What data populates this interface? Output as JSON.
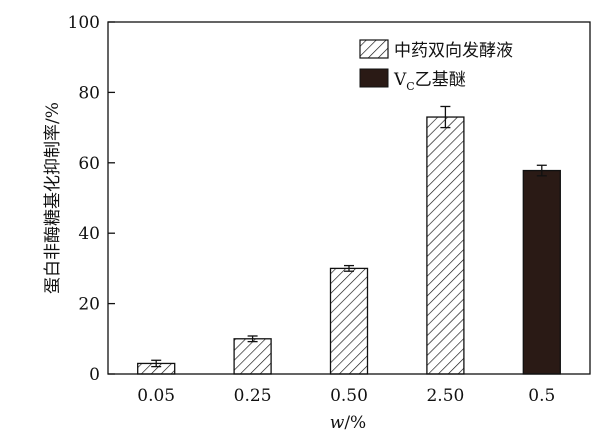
{
  "chart_data": {
    "type": "bar",
    "categories": [
      "0.05",
      "0.25",
      "0.50",
      "2.50",
      "0.5"
    ],
    "series": [
      {
        "name": "中药双向发酵液",
        "values": [
          3.0,
          10.0,
          30.0,
          73.0,
          null
        ],
        "errors": [
          0.9,
          0.8,
          0.8,
          3.0,
          null
        ],
        "pattern": "diagonal-hatch"
      },
      {
        "name": "Vc乙基醚",
        "name_main": "V",
        "name_sub": "C",
        "name_rest": "乙基醚",
        "values": [
          null,
          null,
          null,
          null,
          57.8
        ],
        "errors": [
          null,
          null,
          null,
          null,
          1.5
        ],
        "color": "#2a1a15"
      }
    ],
    "xlabel_italic": "w",
    "xlabel_rest": "/%",
    "ylabel": "蛋白非酶糖基化抑制率/%",
    "ylim": [
      0,
      100
    ],
    "yticks": [
      0,
      20,
      40,
      60,
      80,
      100
    ],
    "grid": false,
    "legend_position": "top-right"
  }
}
